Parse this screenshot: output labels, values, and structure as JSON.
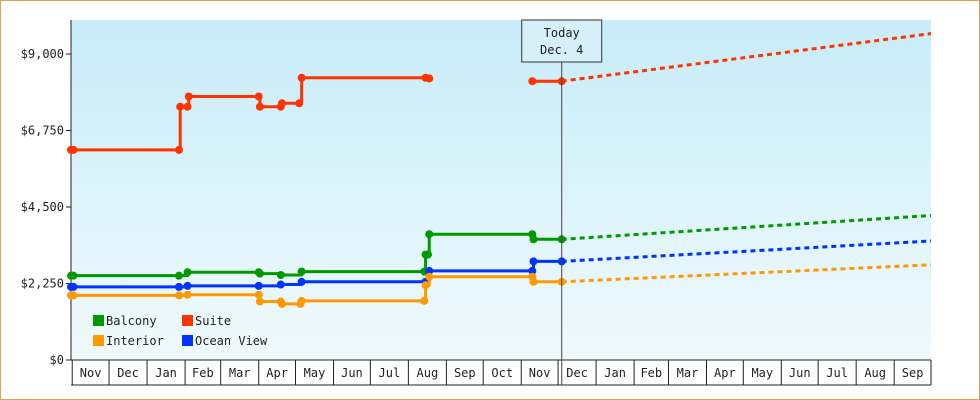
{
  "chart_data": {
    "type": "line",
    "title": "",
    "xlabel": "",
    "ylabel": "",
    "ylim": [
      0,
      10000
    ],
    "y_ticks": [
      0,
      2250,
      4500,
      6750,
      9000
    ],
    "y_tick_labels": [
      "$0",
      "$2,250",
      "$4,500",
      "$6,750",
      "$9,000"
    ],
    "x_range": [
      "2023-10-31",
      "2025-10-01"
    ],
    "x_tick_labels": [
      {
        "label": "Nov",
        "date": "2023-11-01"
      },
      {
        "label": "Dec",
        "date": "2023-12-01"
      },
      {
        "label": "Jan",
        "date": "2024-01-01"
      },
      {
        "label": "Feb",
        "date": "2024-02-01"
      },
      {
        "label": "Mar",
        "date": "2024-03-01"
      },
      {
        "label": "Apr",
        "date": "2024-04-01"
      },
      {
        "label": "May",
        "date": "2024-05-01"
      },
      {
        "label": "Jun",
        "date": "2024-06-01"
      },
      {
        "label": "Jul",
        "date": "2024-07-01"
      },
      {
        "label": "Aug",
        "date": "2024-08-01"
      },
      {
        "label": "Sep",
        "date": "2024-09-01"
      },
      {
        "label": "Oct",
        "date": "2024-10-01"
      },
      {
        "label": "Nov",
        "date": "2024-11-01"
      },
      {
        "label": "Dec",
        "date": "2024-12-01"
      },
      {
        "label": "Jan",
        "date": "2025-01-01"
      },
      {
        "label": "Feb",
        "date": "2025-02-01"
      },
      {
        "label": "Mar",
        "date": "2025-03-01"
      },
      {
        "label": "Apr",
        "date": "2025-04-01"
      },
      {
        "label": "May",
        "date": "2025-05-01"
      },
      {
        "label": "Jun",
        "date": "2025-06-01"
      },
      {
        "label": "Jul",
        "date": "2025-07-01"
      },
      {
        "label": "Aug",
        "date": "2025-08-01"
      },
      {
        "label": "Sep",
        "date": "2025-09-01"
      }
    ],
    "today_marker": {
      "line1": "Today",
      "line2": "Dec. 4",
      "date": "2024-12-04"
    },
    "legend_position": "bottom-left",
    "grid": false,
    "background_gradient": [
      "#c8ecf8",
      "#f0fafd"
    ],
    "series": [
      {
        "name": "Suite",
        "color": "#ff3300",
        "points": [
          {
            "date": "2023-10-31",
            "value": 6180
          },
          {
            "date": "2023-11-02",
            "value": 6180
          },
          {
            "date": "2024-01-27",
            "value": 6180
          },
          {
            "date": "2024-01-28",
            "value": 7450
          },
          {
            "date": "2024-02-03",
            "value": 7450
          },
          {
            "date": "2024-02-04",
            "value": 7750
          },
          {
            "date": "2024-04-01",
            "value": 7750
          },
          {
            "date": "2024-04-02",
            "value": 7450
          },
          {
            "date": "2024-04-19",
            "value": 7450
          },
          {
            "date": "2024-04-20",
            "value": 7550
          },
          {
            "date": "2024-05-04",
            "value": 7550
          },
          {
            "date": "2024-05-06",
            "value": 8300
          },
          {
            "date": "2024-08-15",
            "value": 8300
          },
          {
            "date": "2024-08-18",
            "value": 8280
          }
        ],
        "segment_2": [
          {
            "date": "2024-11-10",
            "value": 8200
          },
          {
            "date": "2024-12-04",
            "value": 8200
          }
        ],
        "projection": [
          {
            "date": "2024-12-04",
            "value": 8200
          },
          {
            "date": "2025-10-01",
            "value": 9600
          }
        ]
      },
      {
        "name": "Balcony",
        "color": "#009900",
        "points": [
          {
            "date": "2023-10-31",
            "value": 2480
          },
          {
            "date": "2023-11-02",
            "value": 2480
          },
          {
            "date": "2024-01-27",
            "value": 2480
          },
          {
            "date": "2024-02-03",
            "value": 2580
          },
          {
            "date": "2024-04-01",
            "value": 2580
          },
          {
            "date": "2024-04-02",
            "value": 2540
          },
          {
            "date": "2024-04-19",
            "value": 2500
          },
          {
            "date": "2024-05-06",
            "value": 2600
          },
          {
            "date": "2024-08-14",
            "value": 2600
          },
          {
            "date": "2024-08-15",
            "value": 3100
          },
          {
            "date": "2024-08-17",
            "value": 3100
          },
          {
            "date": "2024-08-18",
            "value": 3700
          },
          {
            "date": "2024-11-10",
            "value": 3700
          },
          {
            "date": "2024-11-11",
            "value": 3550
          },
          {
            "date": "2024-12-04",
            "value": 3550
          }
        ],
        "projection": [
          {
            "date": "2024-12-04",
            "value": 3550
          },
          {
            "date": "2025-10-01",
            "value": 4250
          }
        ]
      },
      {
        "name": "Ocean View",
        "color": "#0033ff",
        "points": [
          {
            "date": "2023-10-31",
            "value": 2150
          },
          {
            "date": "2023-11-02",
            "value": 2150
          },
          {
            "date": "2024-01-27",
            "value": 2150
          },
          {
            "date": "2024-02-03",
            "value": 2180
          },
          {
            "date": "2024-04-01",
            "value": 2180
          },
          {
            "date": "2024-04-19",
            "value": 2220
          },
          {
            "date": "2024-05-06",
            "value": 2300
          },
          {
            "date": "2024-08-15",
            "value": 2300
          },
          {
            "date": "2024-08-18",
            "value": 2620
          },
          {
            "date": "2024-11-10",
            "value": 2620
          },
          {
            "date": "2024-11-11",
            "value": 2900
          },
          {
            "date": "2024-12-04",
            "value": 2900
          }
        ],
        "projection": [
          {
            "date": "2024-12-04",
            "value": 2900
          },
          {
            "date": "2025-10-01",
            "value": 3500
          }
        ]
      },
      {
        "name": "Interior",
        "color": "#ff9900",
        "points": [
          {
            "date": "2023-10-31",
            "value": 1900
          },
          {
            "date": "2023-11-02",
            "value": 1900
          },
          {
            "date": "2024-01-27",
            "value": 1900
          },
          {
            "date": "2024-02-03",
            "value": 1920
          },
          {
            "date": "2024-04-01",
            "value": 1920
          },
          {
            "date": "2024-04-02",
            "value": 1720
          },
          {
            "date": "2024-04-19",
            "value": 1720
          },
          {
            "date": "2024-04-20",
            "value": 1650
          },
          {
            "date": "2024-05-05",
            "value": 1650
          },
          {
            "date": "2024-05-06",
            "value": 1740
          },
          {
            "date": "2024-08-14",
            "value": 1740
          },
          {
            "date": "2024-08-15",
            "value": 2200
          },
          {
            "date": "2024-08-18",
            "value": 2450
          },
          {
            "date": "2024-11-10",
            "value": 2450
          },
          {
            "date": "2024-11-11",
            "value": 2300
          },
          {
            "date": "2024-12-04",
            "value": 2300
          }
        ],
        "projection": [
          {
            "date": "2024-12-04",
            "value": 2300
          },
          {
            "date": "2025-10-01",
            "value": 2800
          }
        ]
      }
    ],
    "legend": [
      {
        "name": "Balcony",
        "color": "#009900"
      },
      {
        "name": "Suite",
        "color": "#ff3300"
      },
      {
        "name": "Interior",
        "color": "#ff9900"
      },
      {
        "name": "Ocean View",
        "color": "#0033ff"
      }
    ]
  }
}
